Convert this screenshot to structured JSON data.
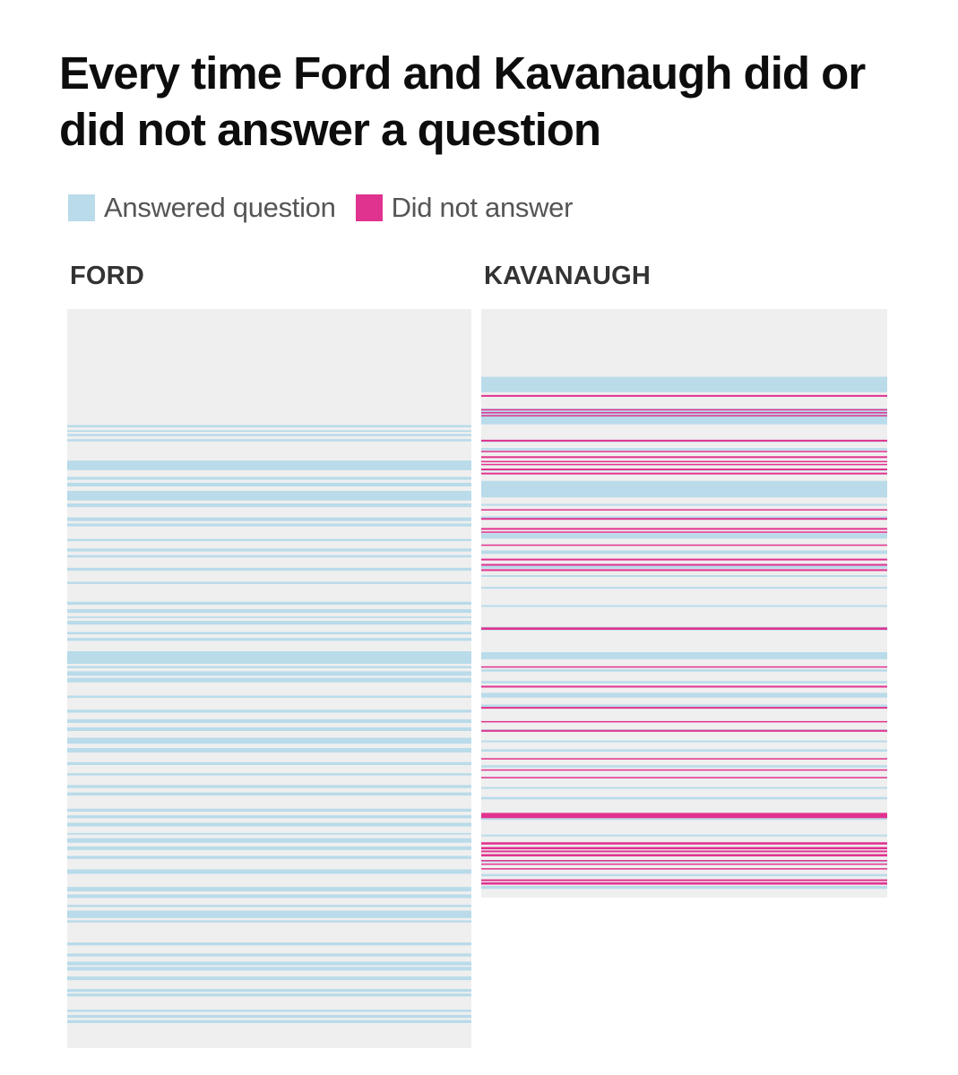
{
  "chart_data": {
    "type": "heatmap",
    "title": "Every time Ford and Kavanaugh did or did not answer a question",
    "legend": [
      {
        "label": "Answered question",
        "color": "#b9dbea"
      },
      {
        "label": "Did not answer",
        "color": "#e0338f"
      }
    ],
    "colors": {
      "answered": "#b9dbea",
      "did_not_answer": "#e0338f",
      "panel_background": "#efefef"
    },
    "panels": [
      {
        "name": "FORD",
        "answered": [
          [
            0.157,
            0.16
          ],
          [
            0.164,
            0.166
          ],
          [
            0.169,
            0.172
          ],
          [
            0.176,
            0.179
          ],
          [
            0.205,
            0.218
          ],
          [
            0.227,
            0.231
          ],
          [
            0.235,
            0.24
          ],
          [
            0.246,
            0.259
          ],
          [
            0.263,
            0.268
          ],
          [
            0.282,
            0.287
          ],
          [
            0.29,
            0.294
          ],
          [
            0.311,
            0.314
          ],
          [
            0.324,
            0.328
          ],
          [
            0.333,
            0.336
          ],
          [
            0.35,
            0.354
          ],
          [
            0.369,
            0.372
          ],
          [
            0.396,
            0.4
          ],
          [
            0.406,
            0.411
          ],
          [
            0.416,
            0.418
          ],
          [
            0.422,
            0.427
          ],
          [
            0.437,
            0.44
          ],
          [
            0.445,
            0.449
          ],
          [
            0.463,
            0.48
          ],
          [
            0.483,
            0.486
          ],
          [
            0.49,
            0.496
          ],
          [
            0.499,
            0.505
          ],
          [
            0.523,
            0.526
          ],
          [
            0.542,
            0.546
          ],
          [
            0.555,
            0.56
          ],
          [
            0.566,
            0.571
          ],
          [
            0.58,
            0.588
          ],
          [
            0.594,
            0.6
          ],
          [
            0.613,
            0.617
          ],
          [
            0.628,
            0.631
          ],
          [
            0.644,
            0.648
          ],
          [
            0.654,
            0.658
          ],
          [
            0.676,
            0.68
          ],
          [
            0.685,
            0.689
          ],
          [
            0.695,
            0.7
          ],
          [
            0.709,
            0.711
          ],
          [
            0.716,
            0.722
          ],
          [
            0.727,
            0.732
          ],
          [
            0.74,
            0.744
          ],
          [
            0.758,
            0.764
          ],
          [
            0.782,
            0.788
          ],
          [
            0.792,
            0.797
          ],
          [
            0.806,
            0.809
          ],
          [
            0.814,
            0.824
          ],
          [
            0.827,
            0.83
          ],
          [
            0.857,
            0.861
          ],
          [
            0.872,
            0.876
          ],
          [
            0.883,
            0.888
          ],
          [
            0.89,
            0.895
          ],
          [
            0.903,
            0.908
          ],
          [
            0.92,
            0.924
          ],
          [
            0.926,
            0.93
          ],
          [
            0.948,
            0.951
          ],
          [
            0.955,
            0.959
          ],
          [
            0.962,
            0.966
          ]
        ],
        "did_not_answer": []
      },
      {
        "name": "KAVANAUGH",
        "answered": [
          [
            0.115,
            0.141
          ],
          [
            0.169,
            0.196
          ],
          [
            0.222,
            0.226
          ],
          [
            0.236,
            0.24
          ],
          [
            0.271,
            0.275
          ],
          [
            0.292,
            0.32
          ],
          [
            0.331,
            0.334
          ],
          [
            0.352,
            0.356
          ],
          [
            0.381,
            0.39
          ],
          [
            0.41,
            0.416
          ],
          [
            0.434,
            0.441
          ],
          [
            0.452,
            0.455
          ],
          [
            0.472,
            0.475
          ],
          [
            0.503,
            0.506
          ],
          [
            0.54,
            0.546
          ],
          [
            0.583,
            0.595
          ],
          [
            0.612,
            0.616
          ],
          [
            0.632,
            0.636
          ],
          [
            0.652,
            0.66
          ],
          [
            0.672,
            0.676
          ],
          [
            0.714,
            0.718
          ],
          [
            0.733,
            0.736
          ],
          [
            0.748,
            0.752
          ],
          [
            0.775,
            0.779
          ],
          [
            0.812,
            0.815
          ],
          [
            0.829,
            0.833
          ],
          [
            0.865,
            0.868
          ],
          [
            0.893,
            0.896
          ],
          [
            0.936,
            0.94
          ],
          [
            0.96,
            0.964
          ],
          [
            0.98,
            0.985
          ]
        ],
        "did_not_answer": [
          [
            0.146,
            0.149
          ],
          [
            0.17,
            0.172
          ],
          [
            0.175,
            0.177
          ],
          [
            0.18,
            0.182
          ],
          [
            0.222,
            0.225
          ],
          [
            0.241,
            0.243
          ],
          [
            0.25,
            0.253
          ],
          [
            0.258,
            0.26
          ],
          [
            0.263,
            0.265
          ],
          [
            0.271,
            0.274
          ],
          [
            0.278,
            0.281
          ],
          [
            0.34,
            0.342
          ],
          [
            0.355,
            0.358
          ],
          [
            0.372,
            0.375
          ],
          [
            0.378,
            0.38
          ],
          [
            0.4,
            0.402
          ],
          [
            0.424,
            0.427
          ],
          [
            0.433,
            0.436
          ],
          [
            0.442,
            0.445
          ],
          [
            0.541,
            0.545
          ],
          [
            0.607,
            0.609
          ],
          [
            0.64,
            0.643
          ],
          [
            0.676,
            0.679
          ],
          [
            0.7,
            0.702
          ],
          [
            0.715,
            0.718
          ],
          [
            0.763,
            0.765
          ],
          [
            0.782,
            0.784
          ],
          [
            0.795,
            0.797
          ],
          [
            0.856,
            0.865
          ],
          [
            0.906,
            0.91
          ],
          [
            0.914,
            0.918
          ],
          [
            0.92,
            0.923
          ],
          [
            0.926,
            0.93
          ],
          [
            0.936,
            0.938
          ],
          [
            0.942,
            0.944
          ],
          [
            0.95,
            0.952
          ],
          [
            0.969,
            0.972
          ],
          [
            0.974,
            0.978
          ]
        ]
      }
    ]
  }
}
